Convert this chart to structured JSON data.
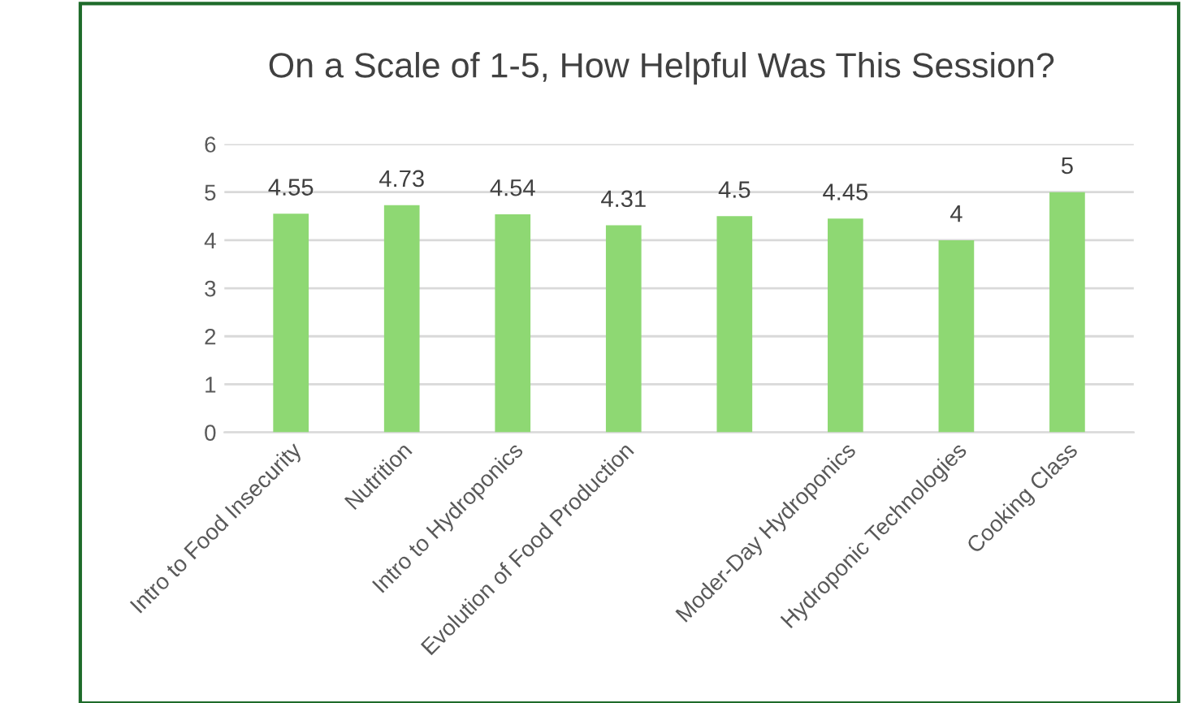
{
  "chart_data": {
    "type": "bar",
    "title": "On a Scale of 1-5, How Helpful Was This Session?",
    "categories": [
      "Intro to Food Insecurity",
      "Nutrition",
      "Intro to Hydroponics",
      "Evolution of Food Production",
      null,
      "Moder-Day Hydroponics",
      "Hydroponic Technologies",
      "Cooking Class"
    ],
    "values": [
      4.55,
      4.73,
      4.54,
      4.31,
      4.5,
      4.45,
      4,
      5
    ],
    "color": "#8ed873",
    "ylim": [
      0,
      6
    ],
    "yticks": [
      0,
      1,
      2,
      3,
      4,
      5,
      6
    ],
    "grid": "y",
    "data_labels": true
  }
}
